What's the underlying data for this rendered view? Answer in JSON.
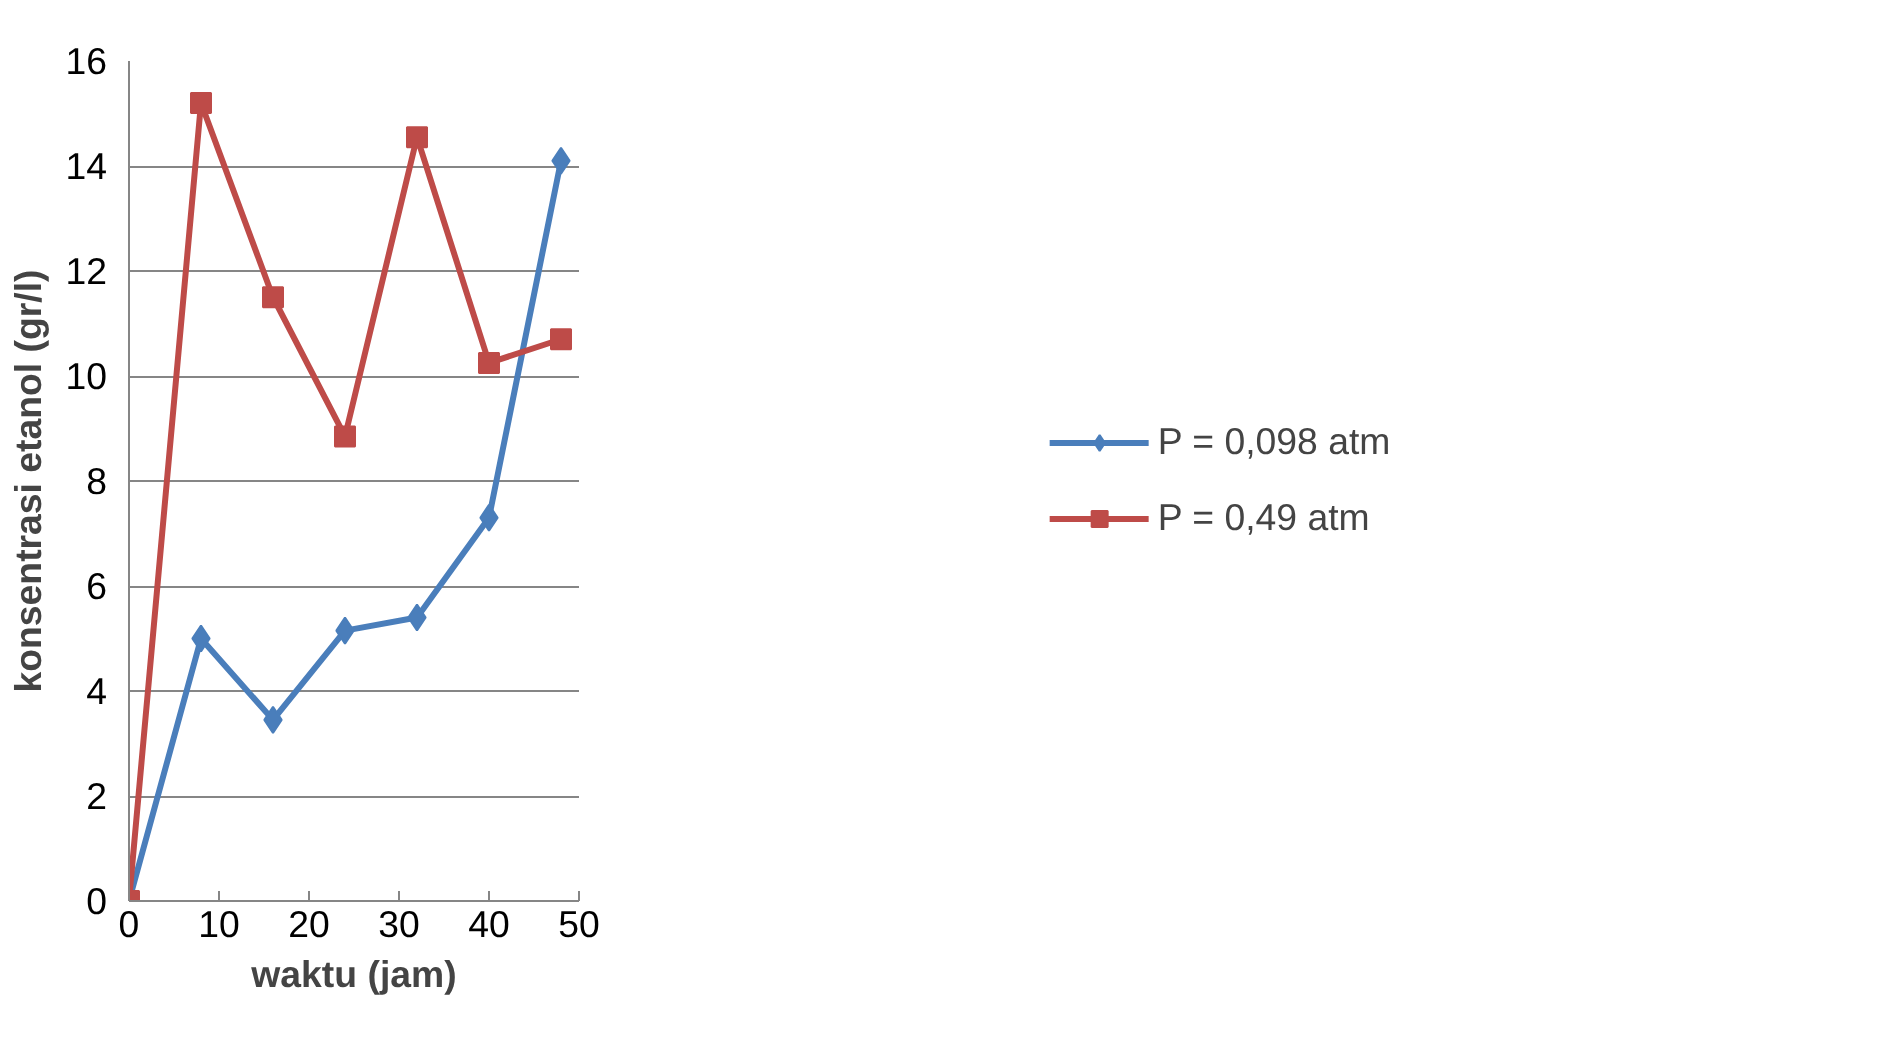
{
  "chart_data": {
    "type": "line",
    "xlabel": "waktu (jam)",
    "ylabel": "konsentrasi etanol (gr/l)",
    "xlim": [
      0,
      50
    ],
    "ylim": [
      0,
      16
    ],
    "xticks": [
      0,
      10,
      20,
      30,
      40,
      50
    ],
    "yticks": [
      0,
      2,
      4,
      6,
      8,
      10,
      12,
      14,
      16
    ],
    "grid": "y",
    "legend": "right",
    "line_style": "solid",
    "series": [
      {
        "name": "P = 0,098 atm",
        "color": "#4a7ebb",
        "marker": "diamond",
        "x": [
          0,
          8,
          16,
          24,
          32,
          40,
          48
        ],
        "values": [
          0,
          5.0,
          3.45,
          5.15,
          5.4,
          7.3,
          14.1
        ]
      },
      {
        "name": "P = 0,49 atm",
        "color": "#be4b48",
        "marker": "square",
        "x": [
          0,
          8,
          16,
          24,
          32,
          40,
          48
        ],
        "values": [
          0,
          15.2,
          11.5,
          8.85,
          14.55,
          10.25,
          10.7
        ]
      }
    ]
  }
}
